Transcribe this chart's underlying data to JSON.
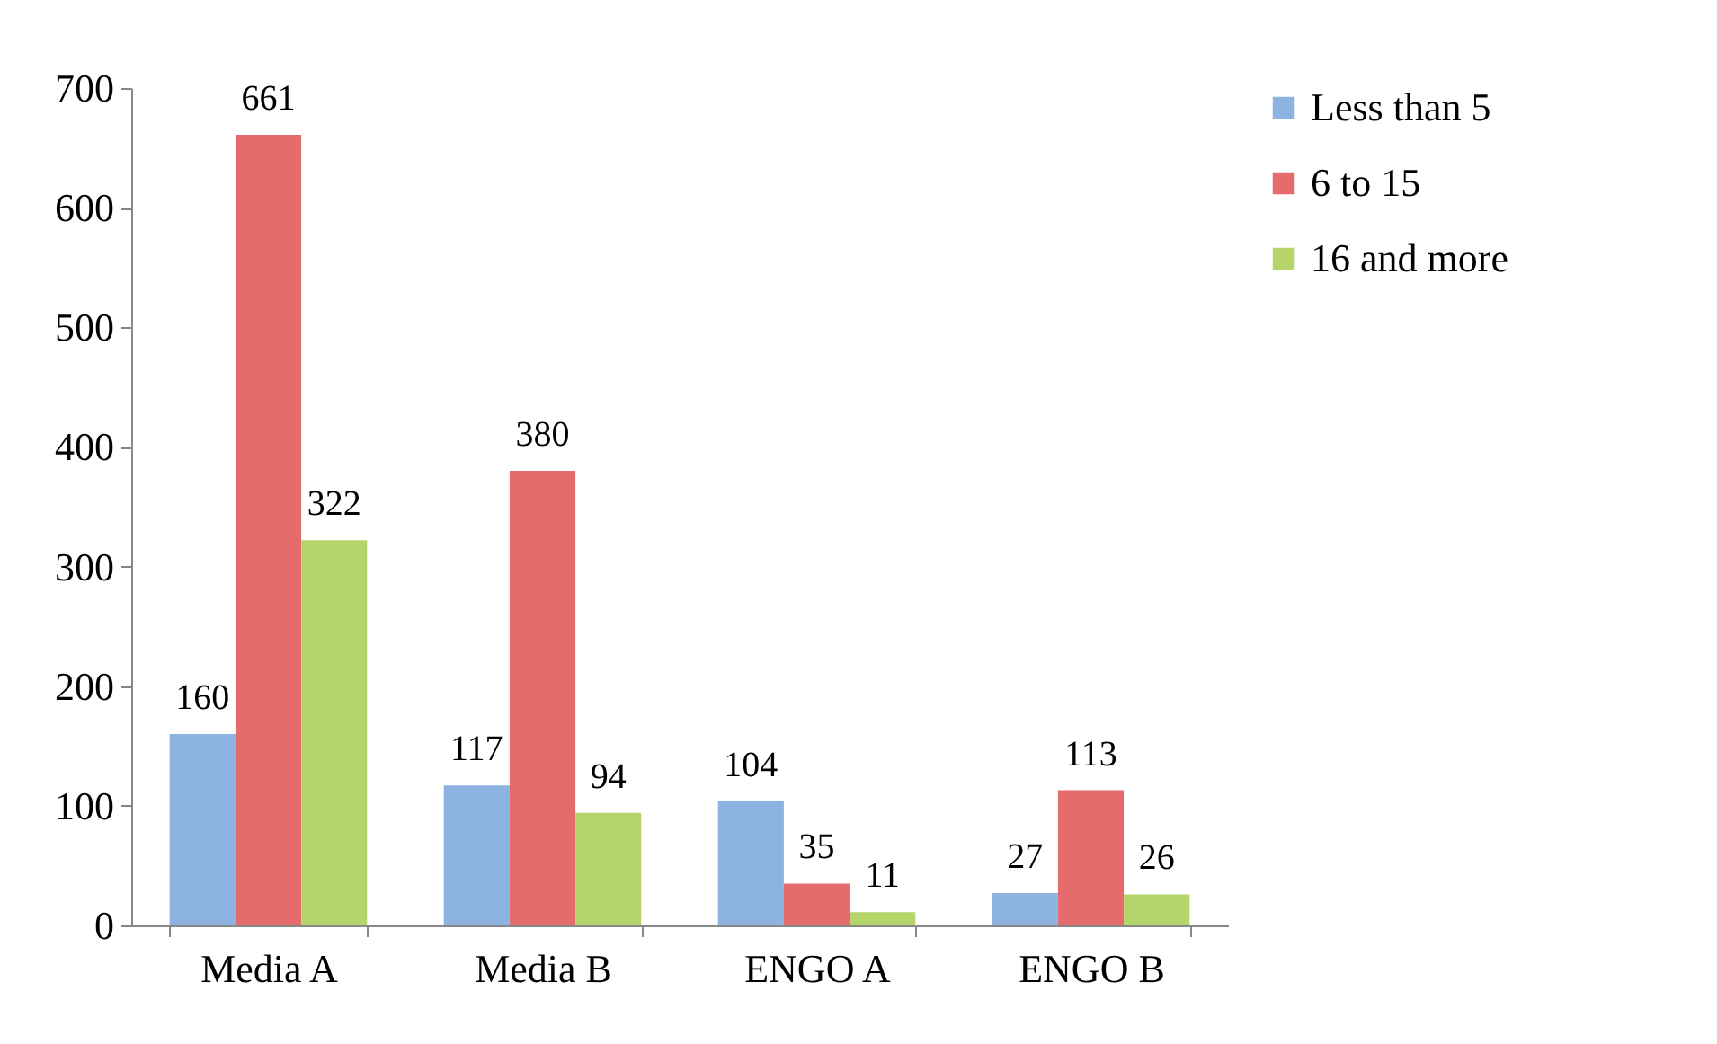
{
  "chart_data": {
    "type": "bar",
    "categories": [
      "Media A",
      "Media B",
      "ENGO A",
      "ENGO B"
    ],
    "series": [
      {
        "name": "Less than 5",
        "color": "#8db3e2",
        "values": [
          160,
          117,
          104,
          27
        ]
      },
      {
        "name": "6 to 15",
        "color": "#e46c6c",
        "values": [
          661,
          380,
          35,
          113
        ]
      },
      {
        "name": "16 and more",
        "color": "#b5d56a",
        "values": [
          322,
          94,
          11,
          26
        ]
      }
    ],
    "ylim": [
      0,
      700
    ],
    "yticks": [
      0,
      100,
      200,
      300,
      400,
      500,
      600,
      700
    ],
    "grid": false,
    "legend": "right",
    "data_labels": true
  }
}
